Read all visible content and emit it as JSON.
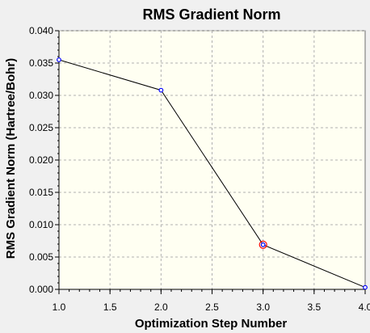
{
  "chart_data": {
    "type": "line",
    "title": "RMS Gradient Norm",
    "xlabel": "Optimization Step Number",
    "ylabel": "RMS Gradient Norm (Hartree/Bohr)",
    "x": [
      1,
      2,
      3,
      4
    ],
    "series": [
      {
        "values": [
          0.0355,
          0.0308,
          0.0069,
          0.0003
        ]
      }
    ],
    "highlighted_point_x": 3,
    "xlim": [
      1.0,
      4.0
    ],
    "ylim": [
      0.0,
      0.04
    ],
    "xticks": [
      "1.0",
      "1.5",
      "2.0",
      "2.5",
      "3.0",
      "3.5",
      "4.0"
    ],
    "yticks": [
      "0.000",
      "0.005",
      "0.010",
      "0.015",
      "0.020",
      "0.025",
      "0.030",
      "0.035",
      "0.040"
    ],
    "grid": true,
    "colors": {
      "plot_background": "#fffff2",
      "window_background": "#f0f0f0",
      "line": "#000000",
      "marker": "#0000ff",
      "highlight_marker": "#ff0000",
      "grid": "#b0b0b0"
    }
  }
}
